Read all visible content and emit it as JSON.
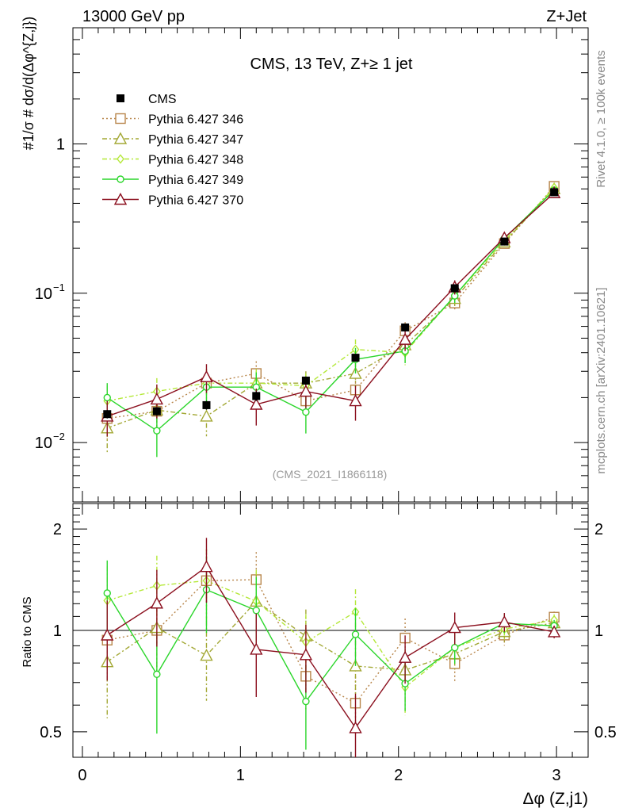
{
  "header": {
    "left": "13000 GeV pp",
    "right": "Z+Jet"
  },
  "side": {
    "top": "Rivet 4.1.0, ≥ 100k events",
    "bottom": "mcplots.cern.ch [arXiv:2401.10621]"
  },
  "chart_data": {
    "type": "line",
    "title": "CMS, 13 TeV, Z+≥ 1 jet",
    "watermark": "(CMS_2021_I1866118)",
    "xlabel": "Δφ (Z,j1)",
    "ylabel": "#1/σ # dσ/d(Δφ^{Z,j})",
    "ratio_ylabel": "Ratio to CMS",
    "xlim": [
      -0.06,
      3.2
    ],
    "ylim": [
      0.004,
      6
    ],
    "ratio_ylim": [
      0.42,
      2.38
    ],
    "x_ticks": [
      0,
      1,
      2,
      3
    ],
    "y_ticks": [
      {
        "v": 0.01,
        "base": "10",
        "exp": "−2"
      },
      {
        "v": 0.1,
        "base": "10",
        "exp": "−1"
      },
      {
        "v": 1,
        "base": "1",
        "exp": ""
      }
    ],
    "ratio_ticks": [
      {
        "v": 0.5,
        "label": "0.5"
      },
      {
        "v": 1,
        "label": "1"
      },
      {
        "v": 2,
        "label": "2"
      }
    ],
    "x": [
      0.157,
      0.471,
      0.785,
      1.1,
      1.414,
      1.728,
      2.042,
      2.356,
      2.67,
      2.985
    ],
    "data": {
      "name": "CMS",
      "values": [
        0.0155,
        0.0162,
        0.0178,
        0.0205,
        0.026,
        0.037,
        0.059,
        0.108,
        0.222,
        0.475
      ],
      "errors": [
        0.001,
        0.001,
        0.0012,
        0.0015,
        0.0017,
        0.0022,
        0.0035,
        0.006,
        0.011,
        0.02
      ]
    },
    "series": [
      {
        "name": "Pythia 6.427 346",
        "color": "#b8864b",
        "dash": "2,3",
        "marker": "square",
        "values": [
          0.0145,
          0.0162,
          0.025,
          0.029,
          0.019,
          0.0225,
          0.056,
          0.086,
          0.215,
          0.52
        ],
        "errors": [
          0.004,
          0.004,
          0.006,
          0.006,
          0.004,
          0.0045,
          0.008,
          0.01,
          0.015,
          0.02
        ]
      },
      {
        "name": "Pythia 6.427 347",
        "color": "#a3a835",
        "dash": "6,3,2,3",
        "marker": "triangle",
        "values": [
          0.0125,
          0.0165,
          0.015,
          0.025,
          0.025,
          0.029,
          0.045,
          0.092,
          0.22,
          0.5
        ],
        "errors": [
          0.004,
          0.004,
          0.004,
          0.005,
          0.005,
          0.0055,
          0.007,
          0.01,
          0.015,
          0.02
        ]
      },
      {
        "name": "Pythia 6.427 348",
        "color": "#b4e838",
        "dash": "6,3,2,3",
        "marker": "diamond",
        "values": [
          0.019,
          0.022,
          0.025,
          0.025,
          0.024,
          0.042,
          0.04,
          0.096,
          0.224,
          0.51
        ],
        "errors": [
          0.005,
          0.005,
          0.006,
          0.006,
          0.005,
          0.007,
          0.007,
          0.01,
          0.015,
          0.02
        ]
      },
      {
        "name": "Pythia 6.427 349",
        "color": "#2bd62b",
        "dash": "",
        "marker": "circle",
        "values": [
          0.02,
          0.012,
          0.0235,
          0.0235,
          0.016,
          0.036,
          0.041,
          0.096,
          0.233,
          0.49
        ],
        "errors": [
          0.005,
          0.004,
          0.006,
          0.006,
          0.0045,
          0.007,
          0.007,
          0.01,
          0.015,
          0.02
        ]
      },
      {
        "name": "Pythia 6.427 370",
        "color": "#8b0f1e",
        "dash": "",
        "marker": "triangle",
        "values": [
          0.015,
          0.0195,
          0.0275,
          0.018,
          0.022,
          0.019,
          0.049,
          0.11,
          0.235,
          0.47
        ],
        "errors": [
          0.004,
          0.005,
          0.006,
          0.005,
          0.005,
          0.005,
          0.008,
          0.012,
          0.015,
          0.02
        ]
      }
    ]
  }
}
